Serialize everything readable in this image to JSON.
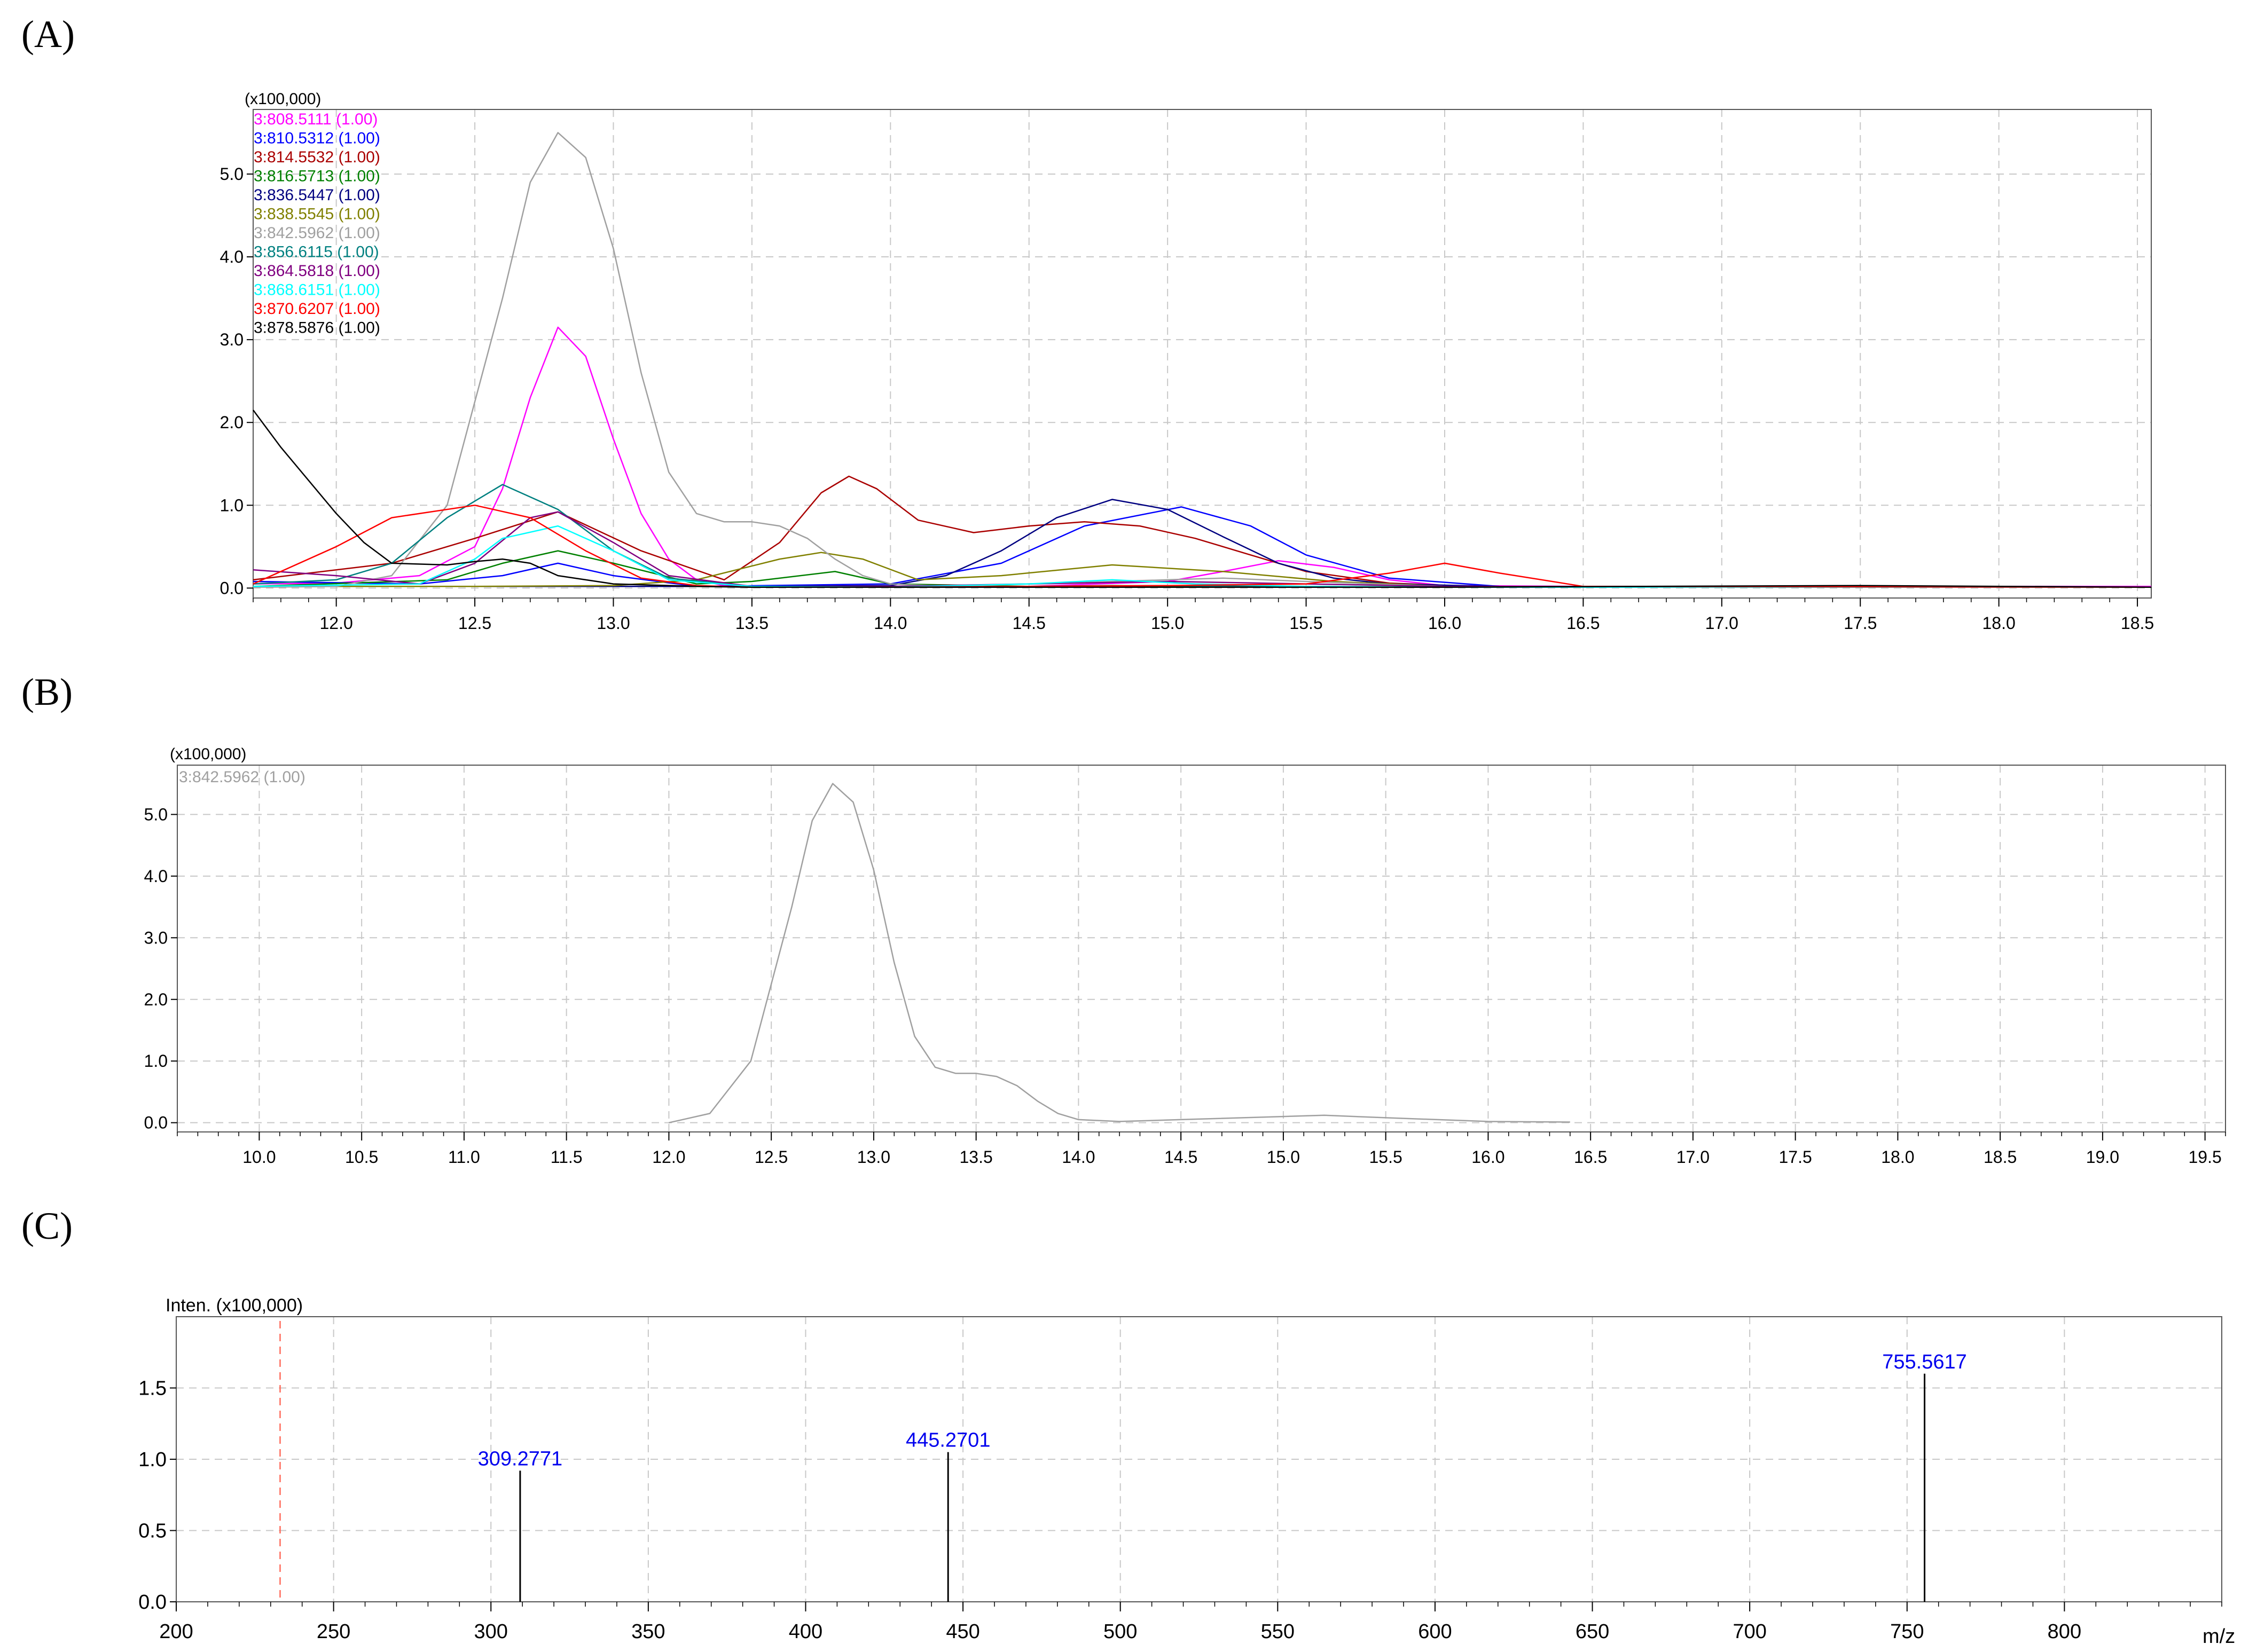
{
  "chart_data": [
    {
      "panel": "(A)",
      "type": "line",
      "scale_label": "(x100,000)",
      "xlim": [
        11.7,
        18.55
      ],
      "ylim": [
        -0.12,
        5.78
      ],
      "xticks": [
        12.0,
        12.5,
        13.0,
        13.5,
        14.0,
        14.5,
        15.0,
        15.5,
        16.0,
        16.5,
        17.0,
        17.5,
        18.0,
        18.5
      ],
      "xtick_labels": [
        "12.0",
        "12.5",
        "13.0",
        "13.5",
        "14.0",
        "14.5",
        "15.0",
        "15.5",
        "16.0",
        "16.5",
        "17.0",
        "17.5",
        "18.0",
        "18.5"
      ],
      "yticks": [
        0,
        1,
        2,
        3,
        4,
        5
      ],
      "ytick_labels": [
        "0.0",
        "1.0",
        "2.0",
        "3.0",
        "4.0",
        "5.0"
      ],
      "grid": true,
      "legend_position": "top-left",
      "series": [
        {
          "name": "3:808.5111 (1.00)",
          "color": "#ff00ff",
          "x": [
            11.7,
            12.0,
            12.3,
            12.5,
            12.6,
            12.7,
            12.8,
            12.9,
            13.0,
            13.1,
            13.2,
            13.3,
            13.4,
            13.5,
            14.0,
            14.5,
            15.0,
            15.2,
            15.4,
            15.6,
            15.8,
            16.0,
            16.5,
            18.55
          ],
          "y": [
            0.05,
            0.06,
            0.15,
            0.5,
            1.2,
            2.3,
            3.15,
            2.8,
            1.8,
            0.9,
            0.35,
            0.1,
            0.03,
            0.02,
            0.01,
            0.02,
            0.08,
            0.2,
            0.33,
            0.25,
            0.1,
            0.03,
            0.02,
            0.02
          ]
        },
        {
          "name": "3:810.5312 (1.00)",
          "color": "#0000ff",
          "x": [
            11.7,
            12.3,
            12.6,
            12.8,
            13.0,
            13.3,
            14.0,
            14.4,
            14.7,
            15.05,
            15.3,
            15.5,
            15.8,
            16.2,
            18.55
          ],
          "y": [
            0.08,
            0.05,
            0.15,
            0.3,
            0.15,
            0.02,
            0.05,
            0.3,
            0.75,
            0.98,
            0.75,
            0.4,
            0.12,
            0.02,
            0.01
          ]
        },
        {
          "name": "3:814.5532 (1.00)",
          "color": "#aa0000",
          "x": [
            11.7,
            12.2,
            12.5,
            12.8,
            13.1,
            13.4,
            13.6,
            13.75,
            13.85,
            13.95,
            14.1,
            14.3,
            14.5,
            14.7,
            14.9,
            15.1,
            15.3,
            15.5,
            15.8,
            16.1,
            16.5,
            18.55
          ],
          "y": [
            0.1,
            0.3,
            0.6,
            0.92,
            0.45,
            0.1,
            0.55,
            1.15,
            1.35,
            1.2,
            0.82,
            0.67,
            0.75,
            0.8,
            0.75,
            0.6,
            0.4,
            0.2,
            0.06,
            0.02,
            0.01,
            0.01
          ]
        },
        {
          "name": "3:816.5713 (1.00)",
          "color": "#008000",
          "x": [
            11.7,
            12.4,
            12.6,
            12.8,
            13.0,
            13.3,
            13.5,
            13.8,
            14.0,
            14.5,
            14.8,
            15.1,
            15.5,
            16.0,
            18.55
          ],
          "y": [
            0.02,
            0.1,
            0.3,
            0.45,
            0.3,
            0.05,
            0.08,
            0.2,
            0.05,
            0.02,
            0.03,
            0.02,
            0.02,
            0.01,
            0.01
          ]
        },
        {
          "name": "3:836.5447 (1.00)",
          "color": "#000080",
          "x": [
            11.7,
            12.5,
            13.0,
            13.5,
            14.0,
            14.2,
            14.4,
            14.6,
            14.8,
            15.0,
            15.2,
            15.4,
            15.6,
            15.8,
            16.2,
            18.55
          ],
          "y": [
            0.02,
            0.02,
            0.02,
            0.02,
            0.03,
            0.15,
            0.45,
            0.85,
            1.07,
            0.95,
            0.62,
            0.3,
            0.12,
            0.05,
            0.02,
            0.01
          ]
        },
        {
          "name": "3:838.5545 (1.00)",
          "color": "#808000",
          "x": [
            11.7,
            12.5,
            13.0,
            13.3,
            13.6,
            13.75,
            13.9,
            14.1,
            14.4,
            14.8,
            15.2,
            15.6,
            16.0,
            18.55
          ],
          "y": [
            0.02,
            0.02,
            0.03,
            0.1,
            0.35,
            0.43,
            0.35,
            0.1,
            0.15,
            0.28,
            0.2,
            0.08,
            0.02,
            0.01
          ]
        },
        {
          "name": "3:842.5962 (1.00)",
          "color": "#a0a0a0",
          "x": [
            11.7,
            12.0,
            12.2,
            12.4,
            12.6,
            12.7,
            12.8,
            12.9,
            13.0,
            13.1,
            13.2,
            13.3,
            13.4,
            13.5,
            13.6,
            13.7,
            13.8,
            13.9,
            14.0,
            14.2,
            14.5,
            15.0,
            15.2,
            15.5,
            16.0,
            16.5,
            18.55
          ],
          "y": [
            0.01,
            0.02,
            0.15,
            1.0,
            3.5,
            4.9,
            5.5,
            5.2,
            4.1,
            2.6,
            1.4,
            0.9,
            0.8,
            0.8,
            0.75,
            0.6,
            0.35,
            0.15,
            0.05,
            0.02,
            0.05,
            0.1,
            0.12,
            0.08,
            0.02,
            0.01,
            0.01
          ]
        },
        {
          "name": "3:856.6115 (1.00)",
          "color": "#008080",
          "x": [
            11.7,
            12.0,
            12.2,
            12.4,
            12.6,
            12.8,
            13.0,
            13.2,
            13.5,
            14.0,
            14.5,
            15.0,
            15.5,
            16.0,
            18.55
          ],
          "y": [
            0.05,
            0.1,
            0.3,
            0.85,
            1.25,
            0.95,
            0.45,
            0.12,
            0.02,
            0.01,
            0.02,
            0.03,
            0.02,
            0.01,
            0.01
          ]
        },
        {
          "name": "3:864.5818 (1.00)",
          "color": "#800080",
          "x": [
            11.7,
            12.0,
            12.3,
            12.5,
            12.7,
            12.8,
            13.0,
            13.2,
            13.5,
            14.0,
            14.5,
            15.0,
            15.5,
            16.0,
            18.55
          ],
          "y": [
            0.22,
            0.15,
            0.05,
            0.3,
            0.85,
            0.92,
            0.55,
            0.15,
            0.02,
            0.02,
            0.05,
            0.08,
            0.05,
            0.02,
            0.01
          ]
        },
        {
          "name": "3:868.6151 (1.00)",
          "color": "#00ffff",
          "x": [
            11.7,
            12.3,
            12.5,
            12.6,
            12.8,
            13.0,
            13.2,
            13.5,
            14.0,
            14.5,
            14.8,
            15.1,
            15.5,
            16.0,
            18.55
          ],
          "y": [
            0.02,
            0.05,
            0.35,
            0.6,
            0.75,
            0.45,
            0.1,
            0.02,
            0.01,
            0.05,
            0.1,
            0.05,
            0.02,
            0.01,
            0.01
          ]
        },
        {
          "name": "3:870.6207 (1.00)",
          "color": "#ff0000",
          "x": [
            11.7,
            12.0,
            12.2,
            12.5,
            12.7,
            12.9,
            13.1,
            13.3,
            13.5,
            14.0,
            14.5,
            15.0,
            15.5,
            15.8,
            16.0,
            16.2,
            16.5,
            18.55
          ],
          "y": [
            0.05,
            0.5,
            0.85,
            1.0,
            0.85,
            0.45,
            0.12,
            0.03,
            0.01,
            0.01,
            0.02,
            0.03,
            0.05,
            0.18,
            0.3,
            0.18,
            0.02,
            0.01
          ]
        },
        {
          "name": "3:878.5876 (1.00)",
          "color": "#000000",
          "x": [
            11.7,
            11.8,
            12.0,
            12.1,
            12.2,
            12.4,
            12.5,
            12.6,
            12.7,
            12.8,
            13.0,
            13.3,
            13.5,
            14.0,
            15.0,
            16.0,
            17.5,
            18.55
          ],
          "y": [
            2.15,
            1.7,
            0.9,
            0.55,
            0.3,
            0.28,
            0.32,
            0.35,
            0.3,
            0.15,
            0.05,
            0.02,
            0.01,
            0.01,
            0.01,
            0.01,
            0.03,
            0.01
          ]
        }
      ]
    },
    {
      "panel": "(B)",
      "type": "line",
      "scale_label": "(x100,000)",
      "xlim": [
        9.6,
        19.6
      ],
      "ylim": [
        -0.15,
        5.8
      ],
      "xticks": [
        10.0,
        10.5,
        11.0,
        11.5,
        12.0,
        12.5,
        13.0,
        13.5,
        14.0,
        14.5,
        15.0,
        15.5,
        16.0,
        16.5,
        17.0,
        17.5,
        18.0,
        18.5,
        19.0,
        19.5
      ],
      "xtick_labels": [
        "10.0",
        "10.5",
        "11.0",
        "11.5",
        "12.0",
        "12.5",
        "13.0",
        "13.5",
        "14.0",
        "14.5",
        "15.0",
        "15.5",
        "16.0",
        "16.5",
        "17.0",
        "17.5",
        "18.0",
        "18.5",
        "19.0",
        "19.5"
      ],
      "yticks": [
        0,
        1,
        2,
        3,
        4,
        5
      ],
      "ytick_labels": [
        "0.0",
        "1.0",
        "2.0",
        "3.0",
        "4.0",
        "5.0"
      ],
      "grid": true,
      "legend_position": "top-left",
      "series": [
        {
          "name": "3:842.5962 (1.00)",
          "color": "#a0a0a0",
          "x": [
            12.0,
            12.2,
            12.4,
            12.6,
            12.7,
            12.8,
            12.9,
            13.0,
            13.1,
            13.2,
            13.3,
            13.4,
            13.5,
            13.6,
            13.7,
            13.8,
            13.9,
            14.0,
            14.2,
            14.5,
            15.0,
            15.2,
            15.5,
            16.0,
            16.4
          ],
          "y": [
            0.0,
            0.15,
            1.0,
            3.5,
            4.9,
            5.5,
            5.2,
            4.1,
            2.6,
            1.4,
            0.9,
            0.8,
            0.8,
            0.75,
            0.6,
            0.35,
            0.15,
            0.05,
            0.02,
            0.05,
            0.1,
            0.12,
            0.08,
            0.02,
            0.01
          ]
        }
      ]
    },
    {
      "panel": "(C)",
      "type": "bar",
      "ylabel": "Inten. (x100,000)",
      "xlabel": "m/z",
      "xlim": [
        200,
        850
      ],
      "ylim": [
        0,
        2.0
      ],
      "xticks": [
        200,
        250,
        300,
        350,
        400,
        450,
        500,
        550,
        600,
        650,
        700,
        750,
        800
      ],
      "xtick_labels": [
        "200",
        "250",
        "300",
        "350",
        "400",
        "450",
        "500",
        "550",
        "600",
        "650",
        "700",
        "750",
        "800"
      ],
      "yticks": [
        0,
        0.5,
        1.0,
        1.5
      ],
      "ytick_labels": [
        "0.0",
        "0.5",
        "1.0",
        "1.5"
      ],
      "grid": true,
      "marker_line_x": 233,
      "peaks": [
        {
          "mz": 309.2771,
          "intensity": 0.92,
          "label": "309.2771"
        },
        {
          "mz": 445.2701,
          "intensity": 1.05,
          "label": "445.2701"
        },
        {
          "mz": 755.5617,
          "intensity": 1.6,
          "label": "755.5617"
        }
      ]
    }
  ]
}
